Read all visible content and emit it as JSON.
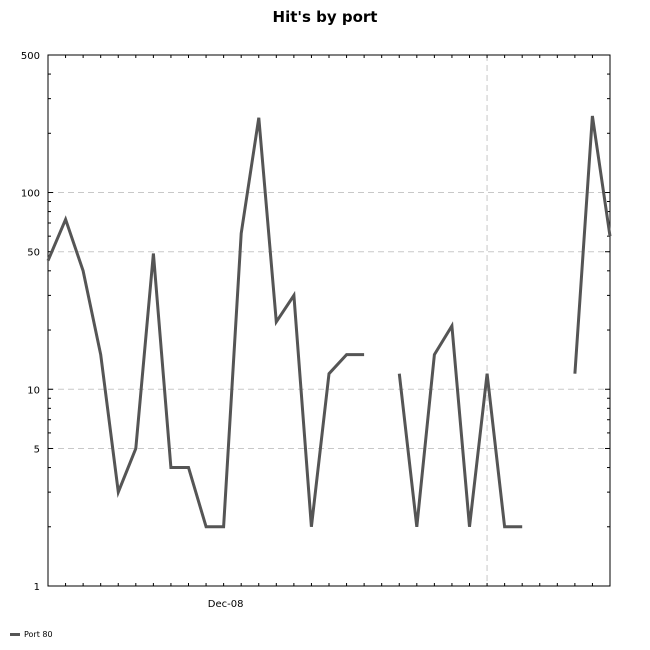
{
  "chart_data": {
    "type": "line",
    "title": "Hit's by port",
    "xlabel": "",
    "ylabel": "",
    "y_scale": "log",
    "ylim": [
      1,
      500
    ],
    "y_ticks": [
      1,
      5,
      10,
      50,
      100,
      500
    ],
    "x_tick_labels": [
      {
        "index": 10,
        "label": "Dec-08"
      }
    ],
    "x_gridline_index": 25,
    "grid": true,
    "legend_position": "bottom-left",
    "series": [
      {
        "name": "Port 80",
        "color": "#555555",
        "values": [
          45,
          73,
          40,
          15,
          3,
          5,
          49,
          4,
          4,
          2,
          2,
          62,
          240,
          22,
          30,
          2,
          12,
          15,
          15,
          null,
          12,
          2,
          15,
          21,
          2,
          12,
          2,
          2,
          null,
          null,
          12,
          245,
          60
        ]
      }
    ]
  }
}
